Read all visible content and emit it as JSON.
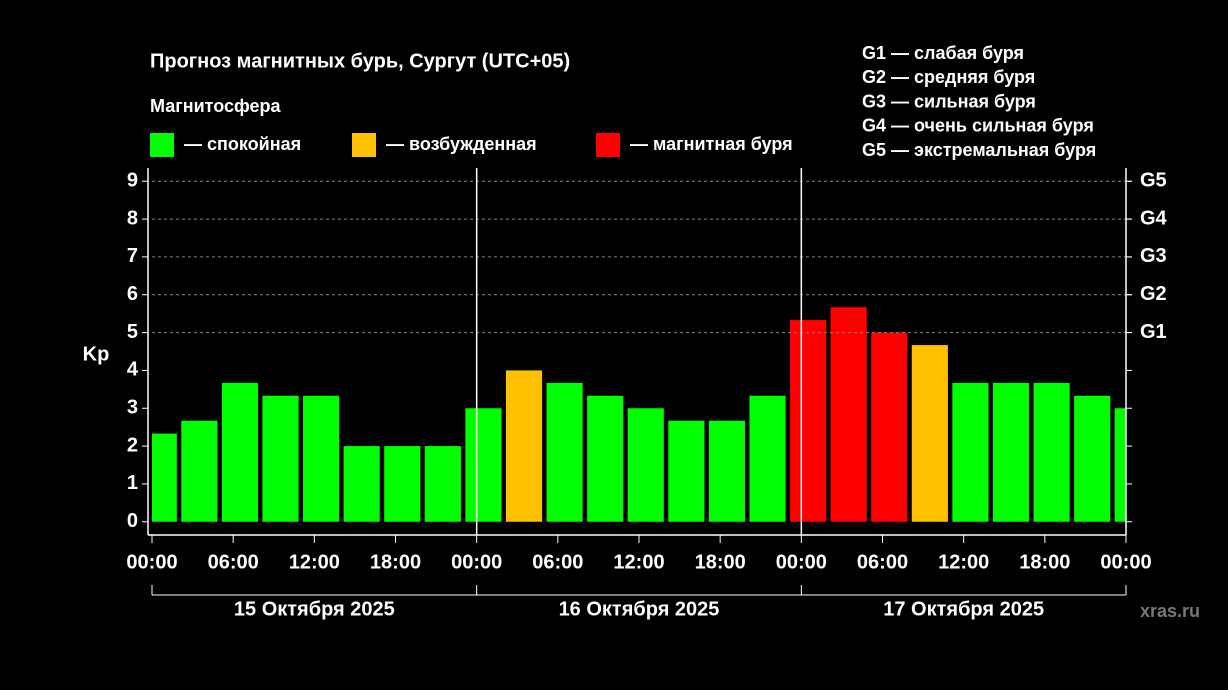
{
  "chart_data": {
    "type": "bar",
    "title": "Прогноз магнитных бурь, Сургут (UTC+05)",
    "legend_title": "Магнитосфера",
    "legend": [
      {
        "name": "— спокойная",
        "color": "#00ff00"
      },
      {
        "name": "— возбужденная",
        "color": "#ffc000"
      },
      {
        "name": "— магнитная буря",
        "color": "#ff0000"
      }
    ],
    "storm_scale": [
      "G1 — слабая буря",
      "G2 — средняя буря",
      "G3 — сильная буря",
      "G4 — очень сильная буря",
      "G5 — экстремальная буря"
    ],
    "y_label": "Kp",
    "x": [
      0.5,
      3.5,
      6.5,
      9.5,
      12.5,
      15.5,
      18.5,
      21.5,
      24.5,
      27.5,
      30.5,
      33.5,
      36.5,
      39.5,
      42.5,
      45.5,
      48.5,
      51.5,
      54.5,
      57.5,
      60.5,
      63.5,
      66.5,
      69.5,
      72.5
    ],
    "bar_width": 2.67,
    "series": [
      {
        "name": "Kp",
        "values": [
          2.33,
          2.67,
          3.67,
          3.33,
          3.33,
          2.0,
          2.0,
          2.0,
          3.0,
          4.0,
          3.67,
          3.33,
          3.0,
          2.67,
          2.67,
          3.33,
          5.33,
          5.67,
          5.0,
          4.67,
          3.67,
          3.67,
          3.67,
          3.33,
          3.0
        ],
        "colors": [
          "#00ff00",
          "#00ff00",
          "#00ff00",
          "#00ff00",
          "#00ff00",
          "#00ff00",
          "#00ff00",
          "#00ff00",
          "#00ff00",
          "#ffc000",
          "#00ff00",
          "#00ff00",
          "#00ff00",
          "#00ff00",
          "#00ff00",
          "#00ff00",
          "#ff0000",
          "#ff0000",
          "#ff0000",
          "#ffc000",
          "#00ff00",
          "#00ff00",
          "#00ff00",
          "#00ff00",
          "#00ff00"
        ]
      }
    ],
    "xlim": [
      0,
      72
    ],
    "xticks": [
      {
        "value": 0,
        "label": "00:00"
      },
      {
        "value": 6,
        "label": "06:00"
      },
      {
        "value": 12,
        "label": "12:00"
      },
      {
        "value": 18,
        "label": "18:00"
      },
      {
        "value": 24,
        "label": "00:00"
      },
      {
        "value": 30,
        "label": "06:00"
      },
      {
        "value": 36,
        "label": "12:00"
      },
      {
        "value": 42,
        "label": "18:00"
      },
      {
        "value": 48,
        "label": "00:00"
      },
      {
        "value": 54,
        "label": "06:00"
      },
      {
        "value": 60,
        "label": "12:00"
      },
      {
        "value": 66,
        "label": "18:00"
      },
      {
        "value": 72,
        "label": "00:00"
      }
    ],
    "days": [
      "15 Октября 2025",
      "16 Октября 2025",
      "17 Октября 2025"
    ],
    "ylim": [
      -0.35,
      9.35
    ],
    "yticks": [
      0,
      1,
      2,
      3,
      4,
      5,
      6,
      7,
      8,
      9
    ],
    "y2lim": [
      -0.35,
      9.35
    ],
    "y2ticks": [
      {
        "value": 5,
        "label": "G1"
      },
      {
        "value": 6,
        "label": "G2"
      },
      {
        "value": 7,
        "label": "G3"
      },
      {
        "value": 8,
        "label": "G4"
      },
      {
        "value": 9,
        "label": "G5"
      }
    ],
    "grid": true,
    "watermark": "xras.ru"
  }
}
